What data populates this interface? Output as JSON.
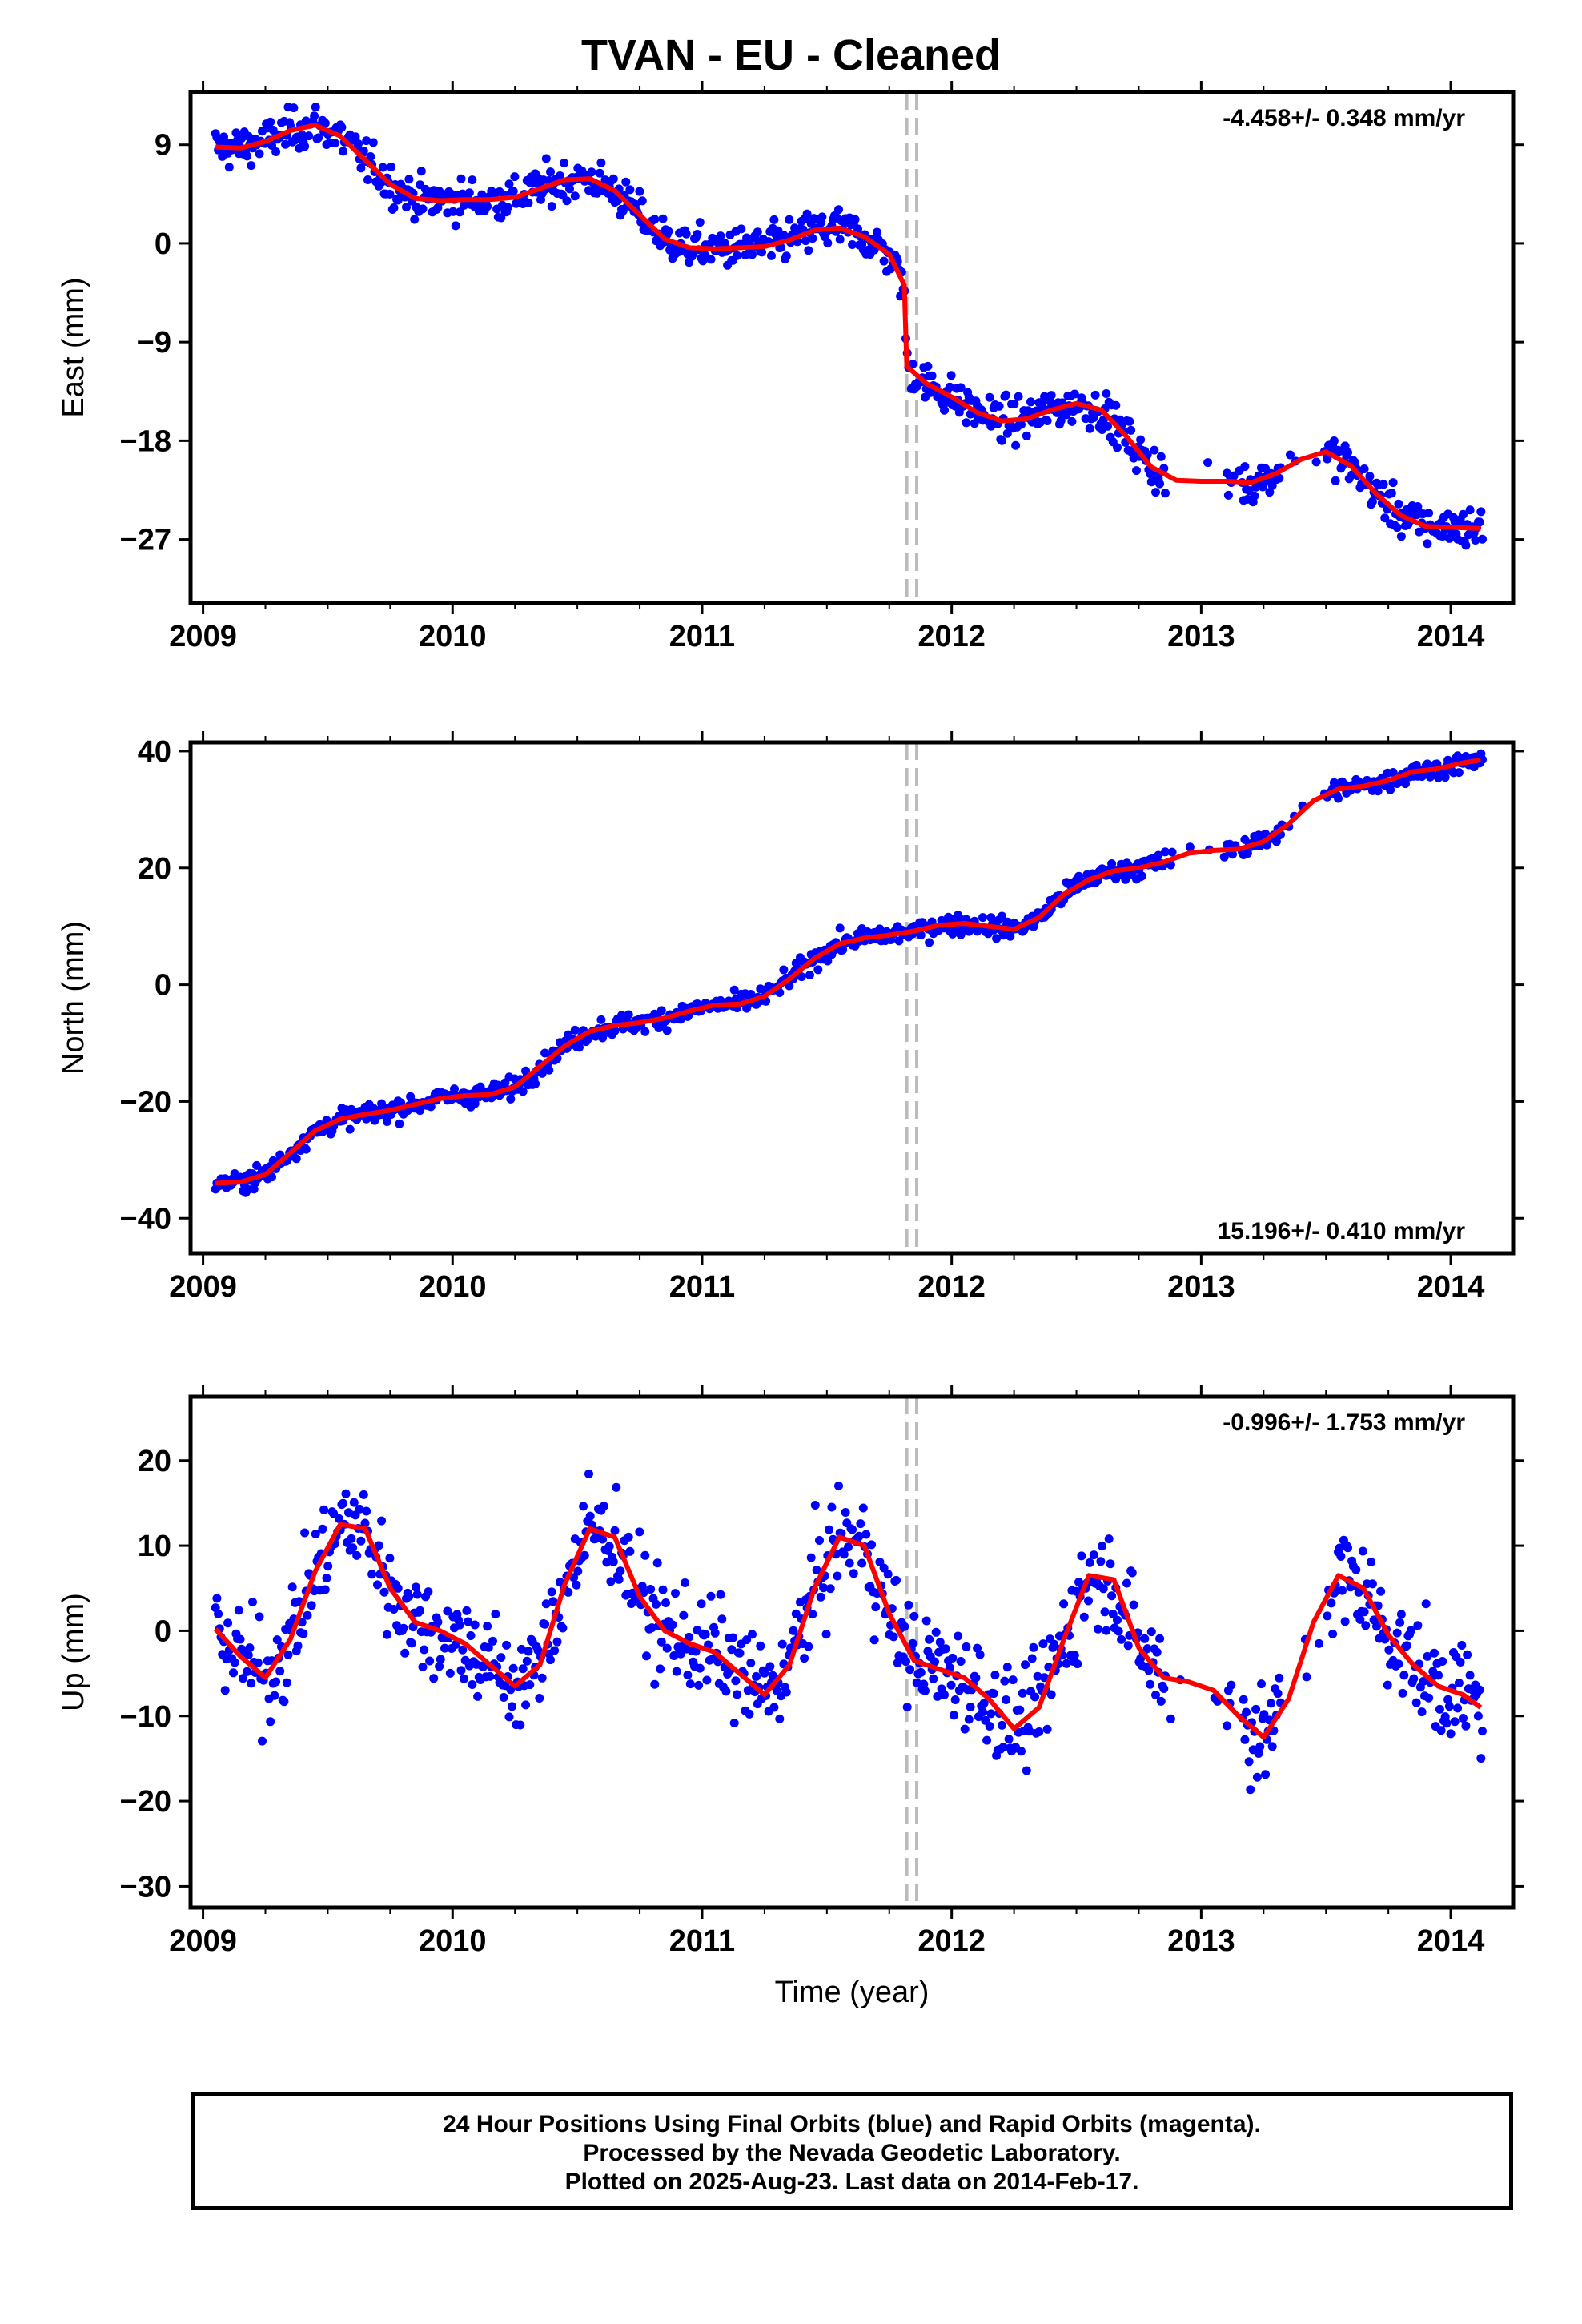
{
  "title": "TVAN  - EU - Cleaned",
  "colors": {
    "points": "#0000ff",
    "fit": "#ff0000",
    "events": "#bbbbbb"
  },
  "footer": {
    "line1": "24 Hour Positions Using Final Orbits (blue) and Rapid Orbits (magenta).",
    "line2": "Processed by the Nevada Geodetic Laboratory.",
    "line3": "Plotted on 2025-Aug-23. Last data on 2014-Feb-17."
  },
  "chart_data": [
    {
      "type": "scatter",
      "component": "East",
      "ylabel": "East (mm)",
      "xlabel": "",
      "xlim": [
        2008.95,
        2014.25
      ],
      "ylim": [
        -32.8,
        13.8
      ],
      "xticks": [
        2009,
        2010,
        2011,
        2012,
        2013,
        2014
      ],
      "yticks": [
        9,
        0,
        -9,
        -18,
        -27
      ],
      "ytick_labels": [
        "9",
        "0",
        "−9",
        "−18",
        "−27"
      ],
      "rate_label": "-4.458+/- 0.348 mm/yr",
      "rate_position": "top-right",
      "event_lines": [
        2011.82,
        2011.86
      ],
      "fit": {
        "x": [
          2009.05,
          2009.15,
          2009.25,
          2009.35,
          2009.45,
          2009.55,
          2009.65,
          2009.75,
          2009.85,
          2009.95,
          2010.05,
          2010.15,
          2010.25,
          2010.35,
          2010.45,
          2010.55,
          2010.65,
          2010.75,
          2010.85,
          2010.95,
          2011.05,
          2011.15,
          2011.25,
          2011.35,
          2011.45,
          2011.55,
          2011.65,
          2011.75,
          2011.81,
          2011.82,
          2011.9,
          2012.0,
          2012.1,
          2012.2,
          2012.3,
          2012.4,
          2012.5,
          2012.6,
          2012.7,
          2012.8,
          2012.9,
          2013.0,
          2013.1,
          2013.2,
          2013.3,
          2013.4,
          2013.5,
          2013.6,
          2013.7,
          2013.8,
          2013.9,
          2014.0,
          2014.12
        ],
        "y": [
          8.8,
          8.7,
          9.3,
          10.3,
          10.8,
          9.8,
          7.6,
          5.4,
          4.1,
          3.9,
          4.0,
          4.0,
          4.2,
          5.0,
          5.8,
          5.9,
          4.8,
          2.6,
          0.4,
          -0.4,
          -0.5,
          -0.4,
          -0.3,
          0.3,
          1.2,
          1.4,
          0.6,
          -1.0,
          -3.8,
          -11.2,
          -12.8,
          -14.0,
          -15.4,
          -16.2,
          -16.0,
          -15.2,
          -14.6,
          -15.2,
          -17.6,
          -20.4,
          -21.6,
          -21.7,
          -21.7,
          -21.8,
          -21.0,
          -19.7,
          -19.0,
          -20.3,
          -22.8,
          -24.8,
          -25.8,
          -25.9,
          -26.0
        ]
      }
    },
    {
      "type": "scatter",
      "component": "North",
      "ylabel": "North (mm)",
      "xlabel": "",
      "xlim": [
        2008.95,
        2014.25
      ],
      "ylim": [
        -46,
        41.5
      ],
      "xticks": [
        2009,
        2010,
        2011,
        2012,
        2013,
        2014
      ],
      "yticks": [
        40,
        20,
        0,
        -20,
        -40
      ],
      "ytick_labels": [
        "40",
        "20",
        "0",
        "−20",
        "−40"
      ],
      "rate_label": "15.196+/- 0.410 mm/yr",
      "rate_position": "bottom-right",
      "event_lines": [
        2011.82,
        2011.86
      ],
      "fit": {
        "x": [
          2009.05,
          2009.15,
          2009.25,
          2009.35,
          2009.45,
          2009.55,
          2009.65,
          2009.75,
          2009.85,
          2009.95,
          2010.05,
          2010.15,
          2010.25,
          2010.35,
          2010.45,
          2010.55,
          2010.65,
          2010.75,
          2010.85,
          2010.95,
          2011.05,
          2011.15,
          2011.25,
          2011.35,
          2011.45,
          2011.55,
          2011.65,
          2011.75,
          2011.85,
          2011.95,
          2012.05,
          2012.15,
          2012.25,
          2012.35,
          2012.45,
          2012.55,
          2012.65,
          2012.75,
          2012.85,
          2012.95,
          2013.05,
          2013.15,
          2013.25,
          2013.35,
          2013.45,
          2013.55,
          2013.65,
          2013.75,
          2013.85,
          2013.95,
          2014.05,
          2014.12
        ],
        "y": [
          -34.0,
          -33.8,
          -32.5,
          -28.8,
          -25.0,
          -23.0,
          -22.2,
          -21.5,
          -20.5,
          -19.5,
          -19.0,
          -18.8,
          -17.5,
          -14.0,
          -10.5,
          -8.0,
          -7.0,
          -6.5,
          -5.7,
          -4.5,
          -3.5,
          -3.3,
          -2.0,
          1.0,
          4.5,
          7.0,
          8.0,
          8.5,
          9.2,
          10.2,
          10.5,
          10.0,
          9.5,
          11.5,
          15.5,
          18.0,
          19.5,
          20.0,
          21.0,
          22.5,
          23.0,
          23.2,
          24.5,
          27.5,
          31.5,
          33.5,
          34.0,
          35.0,
          36.5,
          37.0,
          38.0,
          38.5
        ]
      }
    },
    {
      "type": "scatter",
      "component": "Up",
      "ylabel": "Up (mm)",
      "xlabel": "Time (year)",
      "xlim": [
        2008.95,
        2014.25
      ],
      "ylim": [
        -32.5,
        27.5
      ],
      "xticks": [
        2009,
        2010,
        2011,
        2012,
        2013,
        2014
      ],
      "yticks": [
        20,
        10,
        0,
        -10,
        -20,
        -30
      ],
      "ytick_labels": [
        "20",
        "10",
        "0",
        "−10",
        "−20",
        "−30"
      ],
      "rate_label": "-0.996+/- 1.753 mm/yr",
      "rate_position": "top-right",
      "event_lines": [
        2011.82,
        2011.86
      ],
      "fit": {
        "x": [
          2009.05,
          2009.15,
          2009.25,
          2009.35,
          2009.45,
          2009.55,
          2009.65,
          2009.75,
          2009.85,
          2009.95,
          2010.05,
          2010.15,
          2010.25,
          2010.35,
          2010.45,
          2010.55,
          2010.65,
          2010.75,
          2010.85,
          2010.95,
          2011.05,
          2011.15,
          2011.25,
          2011.35,
          2011.45,
          2011.55,
          2011.65,
          2011.75,
          2011.85,
          2011.95,
          2012.05,
          2012.15,
          2012.25,
          2012.35,
          2012.45,
          2012.55,
          2012.65,
          2012.75,
          2012.85,
          2012.95,
          2013.05,
          2013.15,
          2013.25,
          2013.35,
          2013.45,
          2013.55,
          2013.65,
          2013.75,
          2013.85,
          2013.95,
          2014.05,
          2014.12
        ],
        "y": [
          0.2,
          -3.0,
          -5.5,
          -1.0,
          7.0,
          12.5,
          12.0,
          5.0,
          1.0,
          0.0,
          -1.5,
          -4.0,
          -6.5,
          -4.0,
          5.5,
          12.0,
          11.0,
          4.0,
          0.0,
          -1.5,
          -2.5,
          -5.0,
          -7.5,
          -4.0,
          5.0,
          11.0,
          10.0,
          2.0,
          -3.5,
          -4.5,
          -5.5,
          -8.0,
          -11.5,
          -9.0,
          -1.0,
          6.5,
          6.0,
          -2.0,
          -5.5,
          -6.0,
          -7.0,
          -10.0,
          -12.5,
          -8.0,
          1.0,
          6.5,
          5.0,
          -0.5,
          -4.0,
          -6.5,
          -7.5,
          -9.0
        ]
      }
    }
  ]
}
